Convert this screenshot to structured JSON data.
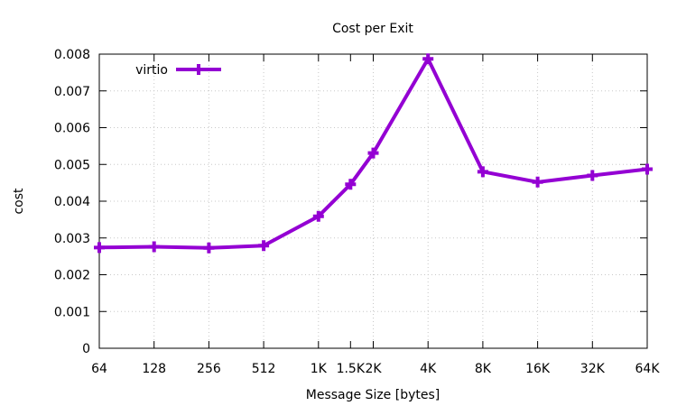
{
  "chart_data": {
    "type": "line",
    "title": "Cost per Exit",
    "xlabel": "Message Size [bytes]",
    "ylabel": "cost",
    "categories": [
      "64",
      "128",
      "256",
      "512",
      "1K",
      "1.5K",
      "2K",
      "4K",
      "8K",
      "16K",
      "32K",
      "64K"
    ],
    "x_bytes": [
      64,
      128,
      256,
      512,
      1024,
      1536,
      2048,
      4096,
      8192,
      16384,
      32768,
      65536
    ],
    "x_tick_labels": [
      "64",
      "128",
      "256",
      "512",
      "1K",
      "1.5K",
      "2K",
      "4K",
      "8K",
      "16K",
      "32K",
      "64K"
    ],
    "x_scale": "log2",
    "xlim": [
      64,
      65536
    ],
    "ylim": [
      0,
      0.008
    ],
    "y_ticks": [
      "0",
      "0.001",
      "0.002",
      "0.003",
      "0.004",
      "0.005",
      "0.006",
      "0.007",
      "0.008"
    ],
    "grid": true,
    "legend_position": "top-left",
    "series": [
      {
        "name": "virtio",
        "color": "#9400d3",
        "marker": "plus",
        "values": [
          0.00274,
          0.00276,
          0.00273,
          0.00279,
          0.00359,
          0.00446,
          0.00531,
          0.00787,
          0.0048,
          0.00452,
          0.0047,
          0.00487
        ]
      }
    ]
  }
}
